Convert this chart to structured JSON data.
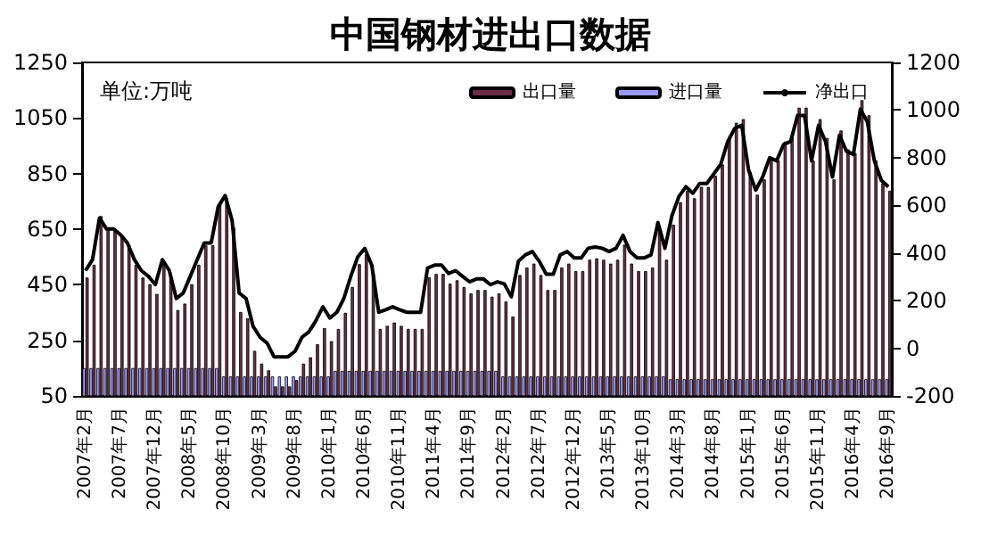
{
  "chart_data": {
    "type": "bar",
    "title": "中国钢材进出口数据",
    "annotations": [
      "单位:万吨"
    ],
    "categories": [
      "2007年2月",
      null,
      null,
      null,
      null,
      "2007年7月",
      null,
      null,
      null,
      null,
      "2007年12月",
      null,
      null,
      null,
      null,
      "2008年5月",
      null,
      null,
      null,
      null,
      "2008年10月",
      null,
      null,
      null,
      null,
      "2009年3月",
      null,
      null,
      null,
      null,
      "2009年8月",
      null,
      null,
      null,
      null,
      "2010年1月",
      null,
      null,
      null,
      null,
      "2010年6月",
      null,
      null,
      null,
      null,
      "2010年11月",
      null,
      null,
      null,
      null,
      "2011年4月",
      null,
      null,
      null,
      null,
      "2011年9月",
      null,
      null,
      null,
      null,
      "2012年2月",
      null,
      null,
      null,
      null,
      "2012年7月",
      null,
      null,
      null,
      null,
      "2012年12月",
      null,
      null,
      null,
      null,
      "2013年5月",
      null,
      null,
      null,
      null,
      "2013年10月",
      null,
      null,
      null,
      null,
      "2014年3月",
      null,
      null,
      null,
      null,
      "2014年8月",
      null,
      null,
      null,
      null,
      "2015年1月",
      null,
      null,
      null,
      null,
      "2015年6月",
      null,
      null,
      null,
      null,
      "2015年11月",
      null,
      null,
      null,
      null,
      "2016年4月",
      null,
      null,
      null,
      null,
      "2016年9月"
    ],
    "series": [
      {
        "name": "出口量",
        "axis": "y",
        "color": "#6b2d45",
        "values": [
          476,
          522,
          697,
          651,
          651,
          627,
          592,
          522,
          476,
          452,
          417,
          522,
          476,
          359,
          382,
          452,
          522,
          592,
          592,
          744,
          761,
          656,
          352,
          329,
          212,
          166,
          142,
          84,
          84,
          84,
          107,
          166,
          189,
          236,
          294,
          247,
          291,
          349,
          442,
          524,
          559,
          489,
          291,
          302,
          314,
          302,
          291,
          291,
          291,
          477,
          489,
          489,
          454,
          466,
          442,
          419,
          431,
          431,
          407,
          419,
          390,
          336,
          485,
          512,
          526,
          485,
          431,
          431,
          512,
          526,
          499,
          499,
          540,
          545,
          540,
          526,
          540,
          594,
          526,
          499,
          499,
          512,
          648,
          540,
          666,
          747,
          788,
          761,
          802,
          802,
          842,
          883,
          978,
          1033,
          1046,
          856,
          774,
          829,
          910,
          897,
          965,
          978,
          1087,
          1087,
          897,
          1046,
          978,
          829,
          1005,
          937,
          924,
          1114,
          1060,
          897,
          815,
          788
        ]
      },
      {
        "name": "进口量",
        "axis": "y",
        "color": "#9999ff",
        "values": [
          150,
          150,
          150,
          150,
          150,
          150,
          150,
          150,
          150,
          150,
          150,
          150,
          150,
          150,
          150,
          150,
          150,
          150,
          150,
          150,
          120,
          120,
          120,
          120,
          120,
          120,
          120,
          120,
          120,
          120,
          120,
          120,
          120,
          120,
          120,
          120,
          140,
          140,
          140,
          140,
          140,
          140,
          140,
          140,
          140,
          140,
          140,
          140,
          140,
          140,
          140,
          140,
          140,
          140,
          140,
          140,
          140,
          140,
          140,
          140,
          120,
          120,
          120,
          120,
          120,
          120,
          120,
          120,
          120,
          120,
          120,
          120,
          120,
          120,
          120,
          120,
          120,
          120,
          120,
          120,
          120,
          120,
          120,
          120,
          110,
          110,
          110,
          110,
          110,
          110,
          110,
          110,
          110,
          110,
          110,
          110,
          110,
          110,
          110,
          110,
          110,
          110,
          110,
          110,
          110,
          110,
          110,
          110,
          110,
          110,
          110,
          110,
          110,
          110,
          110,
          110
        ]
      },
      {
        "name": "净出口",
        "type": "line",
        "axis": "y2",
        "color": "#000000",
        "values": [
          326,
          372,
          547,
          501,
          501,
          477,
          442,
          372,
          326,
          302,
          267,
          372,
          326,
          209,
          232,
          302,
          372,
          442,
          442,
          594,
          641,
          536,
          232,
          209,
          92,
          46,
          22,
          -36,
          -36,
          -36,
          -13,
          46,
          69,
          116,
          174,
          127,
          151,
          209,
          302,
          384,
          419,
          349,
          151,
          162,
          174,
          162,
          151,
          151,
          151,
          337,
          349,
          349,
          314,
          326,
          302,
          279,
          291,
          291,
          267,
          279,
          270,
          216,
          365,
          392,
          406,
          365,
          311,
          311,
          392,
          406,
          379,
          379,
          420,
          425,
          420,
          406,
          420,
          474,
          406,
          379,
          379,
          392,
          528,
          420,
          556,
          637,
          678,
          651,
          692,
          692,
          732,
          773,
          868,
          923,
          936,
          746,
          664,
          719,
          800,
          787,
          855,
          868,
          977,
          977,
          787,
          936,
          868,
          719,
          895,
          827,
          814,
          1004,
          950,
          787,
          705,
          678
        ]
      }
    ],
    "ylim": [
      50,
      1250
    ],
    "yticks": [
      50,
      250,
      450,
      650,
      850,
      1050,
      1250
    ],
    "y2lim": [
      -200,
      1200
    ],
    "y2ticks": [
      -200,
      0,
      200,
      400,
      600,
      800,
      1000,
      1200
    ],
    "legend": "top right",
    "grid": false
  }
}
